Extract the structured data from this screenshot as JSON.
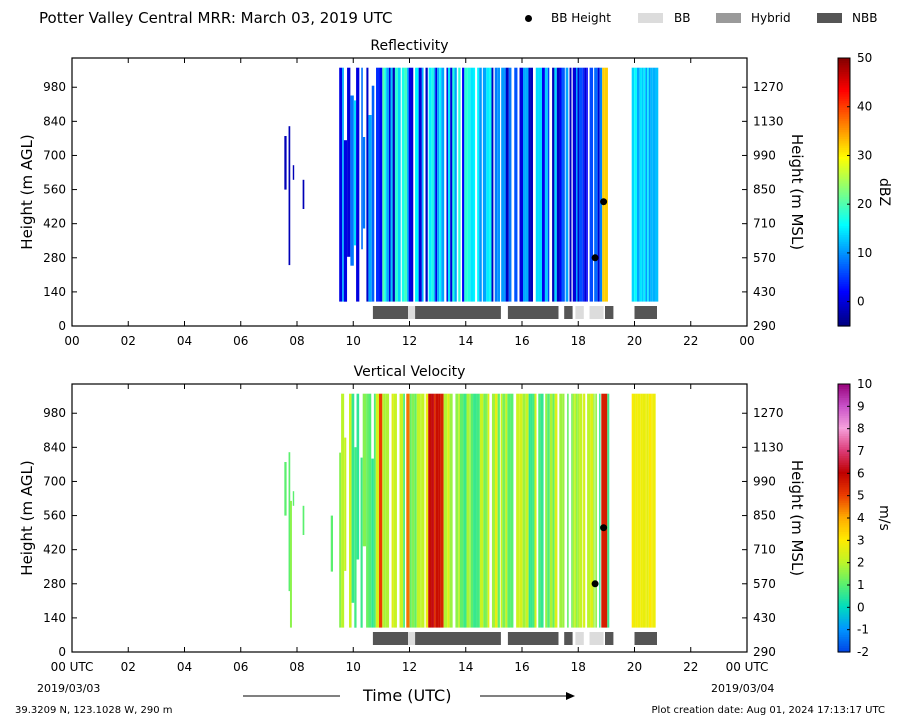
{
  "page": {
    "title": "Potter Valley Central MRR:  March 03, 2019 UTC",
    "legend": [
      {
        "label": "BB Height",
        "kind": "dot",
        "color": "#000000"
      },
      {
        "label": "BB",
        "kind": "box",
        "color": "#dcdcdc"
      },
      {
        "label": "Hybrid",
        "kind": "box",
        "color": "#9a9a9a"
      },
      {
        "label": "NBB",
        "kind": "box",
        "color": "#555555"
      }
    ],
    "x_axis_label": "Time (UTC)",
    "start_date": "2019/03/03",
    "end_date": "2019/03/04",
    "location": "39.3209 N, 123.1028 W, 290 m",
    "creation": "Plot creation date: Aug 01, 2024 17:13:17 UTC"
  },
  "chart_data": [
    {
      "type": "heatmap",
      "title": "Reflectivity",
      "ylabel": "Height (m AGL)",
      "ylabel_right": "Height (m MSL)",
      "xlim": [
        0,
        24
      ],
      "ylim": [
        0,
        1100
      ],
      "x_ticks": [
        "00",
        "02",
        "04",
        "06",
        "08",
        "10",
        "12",
        "14",
        "16",
        "18",
        "20",
        "22",
        "00"
      ],
      "y_ticks": [
        0,
        140,
        280,
        420,
        560,
        700,
        840,
        980
      ],
      "y_ticks_right": [
        290,
        430,
        570,
        710,
        850,
        990,
        1130,
        1270
      ],
      "colorbar": {
        "label": "dBZ",
        "range": [
          -5,
          50
        ],
        "ticks": [
          0,
          10,
          20,
          30,
          40,
          50
        ]
      },
      "bb_height_points": [
        {
          "x": 18.6,
          "y": 280
        },
        {
          "x": 18.9,
          "y": 510
        }
      ],
      "bb_classification": [
        {
          "start": 10.7,
          "end": 11.95,
          "class": "NBB"
        },
        {
          "start": 11.95,
          "end": 12.2,
          "class": "BB"
        },
        {
          "start": 12.2,
          "end": 15.25,
          "class": "NBB"
        },
        {
          "start": 15.5,
          "end": 17.3,
          "class": "NBB"
        },
        {
          "start": 17.5,
          "end": 17.8,
          "class": "NBB"
        },
        {
          "start": 17.9,
          "end": 18.2,
          "class": "BB"
        },
        {
          "start": 18.4,
          "end": 18.9,
          "class": "BB"
        },
        {
          "start": 18.95,
          "end": 19.25,
          "class": "NBB"
        },
        {
          "start": 20.0,
          "end": 20.8,
          "class": "NBB"
        }
      ]
    },
    {
      "type": "heatmap",
      "title": "Vertical Velocity",
      "ylabel": "Height (m AGL)",
      "ylabel_right": "Height (m MSL)",
      "xlim": [
        0,
        24
      ],
      "ylim": [
        0,
        1100
      ],
      "x_ticks": [
        "00 UTC",
        "02",
        "04",
        "06",
        "08",
        "10",
        "12",
        "14",
        "16",
        "18",
        "20",
        "22",
        "00 UTC"
      ],
      "y_ticks": [
        0,
        140,
        280,
        420,
        560,
        700,
        840,
        980
      ],
      "y_ticks_right": [
        290,
        430,
        570,
        710,
        850,
        990,
        1130,
        1270
      ],
      "colorbar": {
        "label": "m/s",
        "range": [
          -2,
          10
        ],
        "ticks": [
          -2,
          -1,
          0,
          1,
          2,
          3,
          4,
          5,
          6,
          7,
          8,
          9,
          10
        ]
      },
      "bb_height_points": [
        {
          "x": 18.6,
          "y": 280
        },
        {
          "x": 18.9,
          "y": 510
        }
      ],
      "bb_classification": [
        {
          "start": 10.7,
          "end": 11.95,
          "class": "NBB"
        },
        {
          "start": 11.95,
          "end": 12.2,
          "class": "BB"
        },
        {
          "start": 12.2,
          "end": 15.25,
          "class": "NBB"
        },
        {
          "start": 15.5,
          "end": 17.3,
          "class": "NBB"
        },
        {
          "start": 17.5,
          "end": 17.8,
          "class": "NBB"
        },
        {
          "start": 17.9,
          "end": 18.2,
          "class": "BB"
        },
        {
          "start": 18.4,
          "end": 18.9,
          "class": "BB"
        },
        {
          "start": 18.95,
          "end": 19.25,
          "class": "NBB"
        },
        {
          "start": 20.0,
          "end": 20.8,
          "class": "NBB"
        }
      ]
    }
  ]
}
